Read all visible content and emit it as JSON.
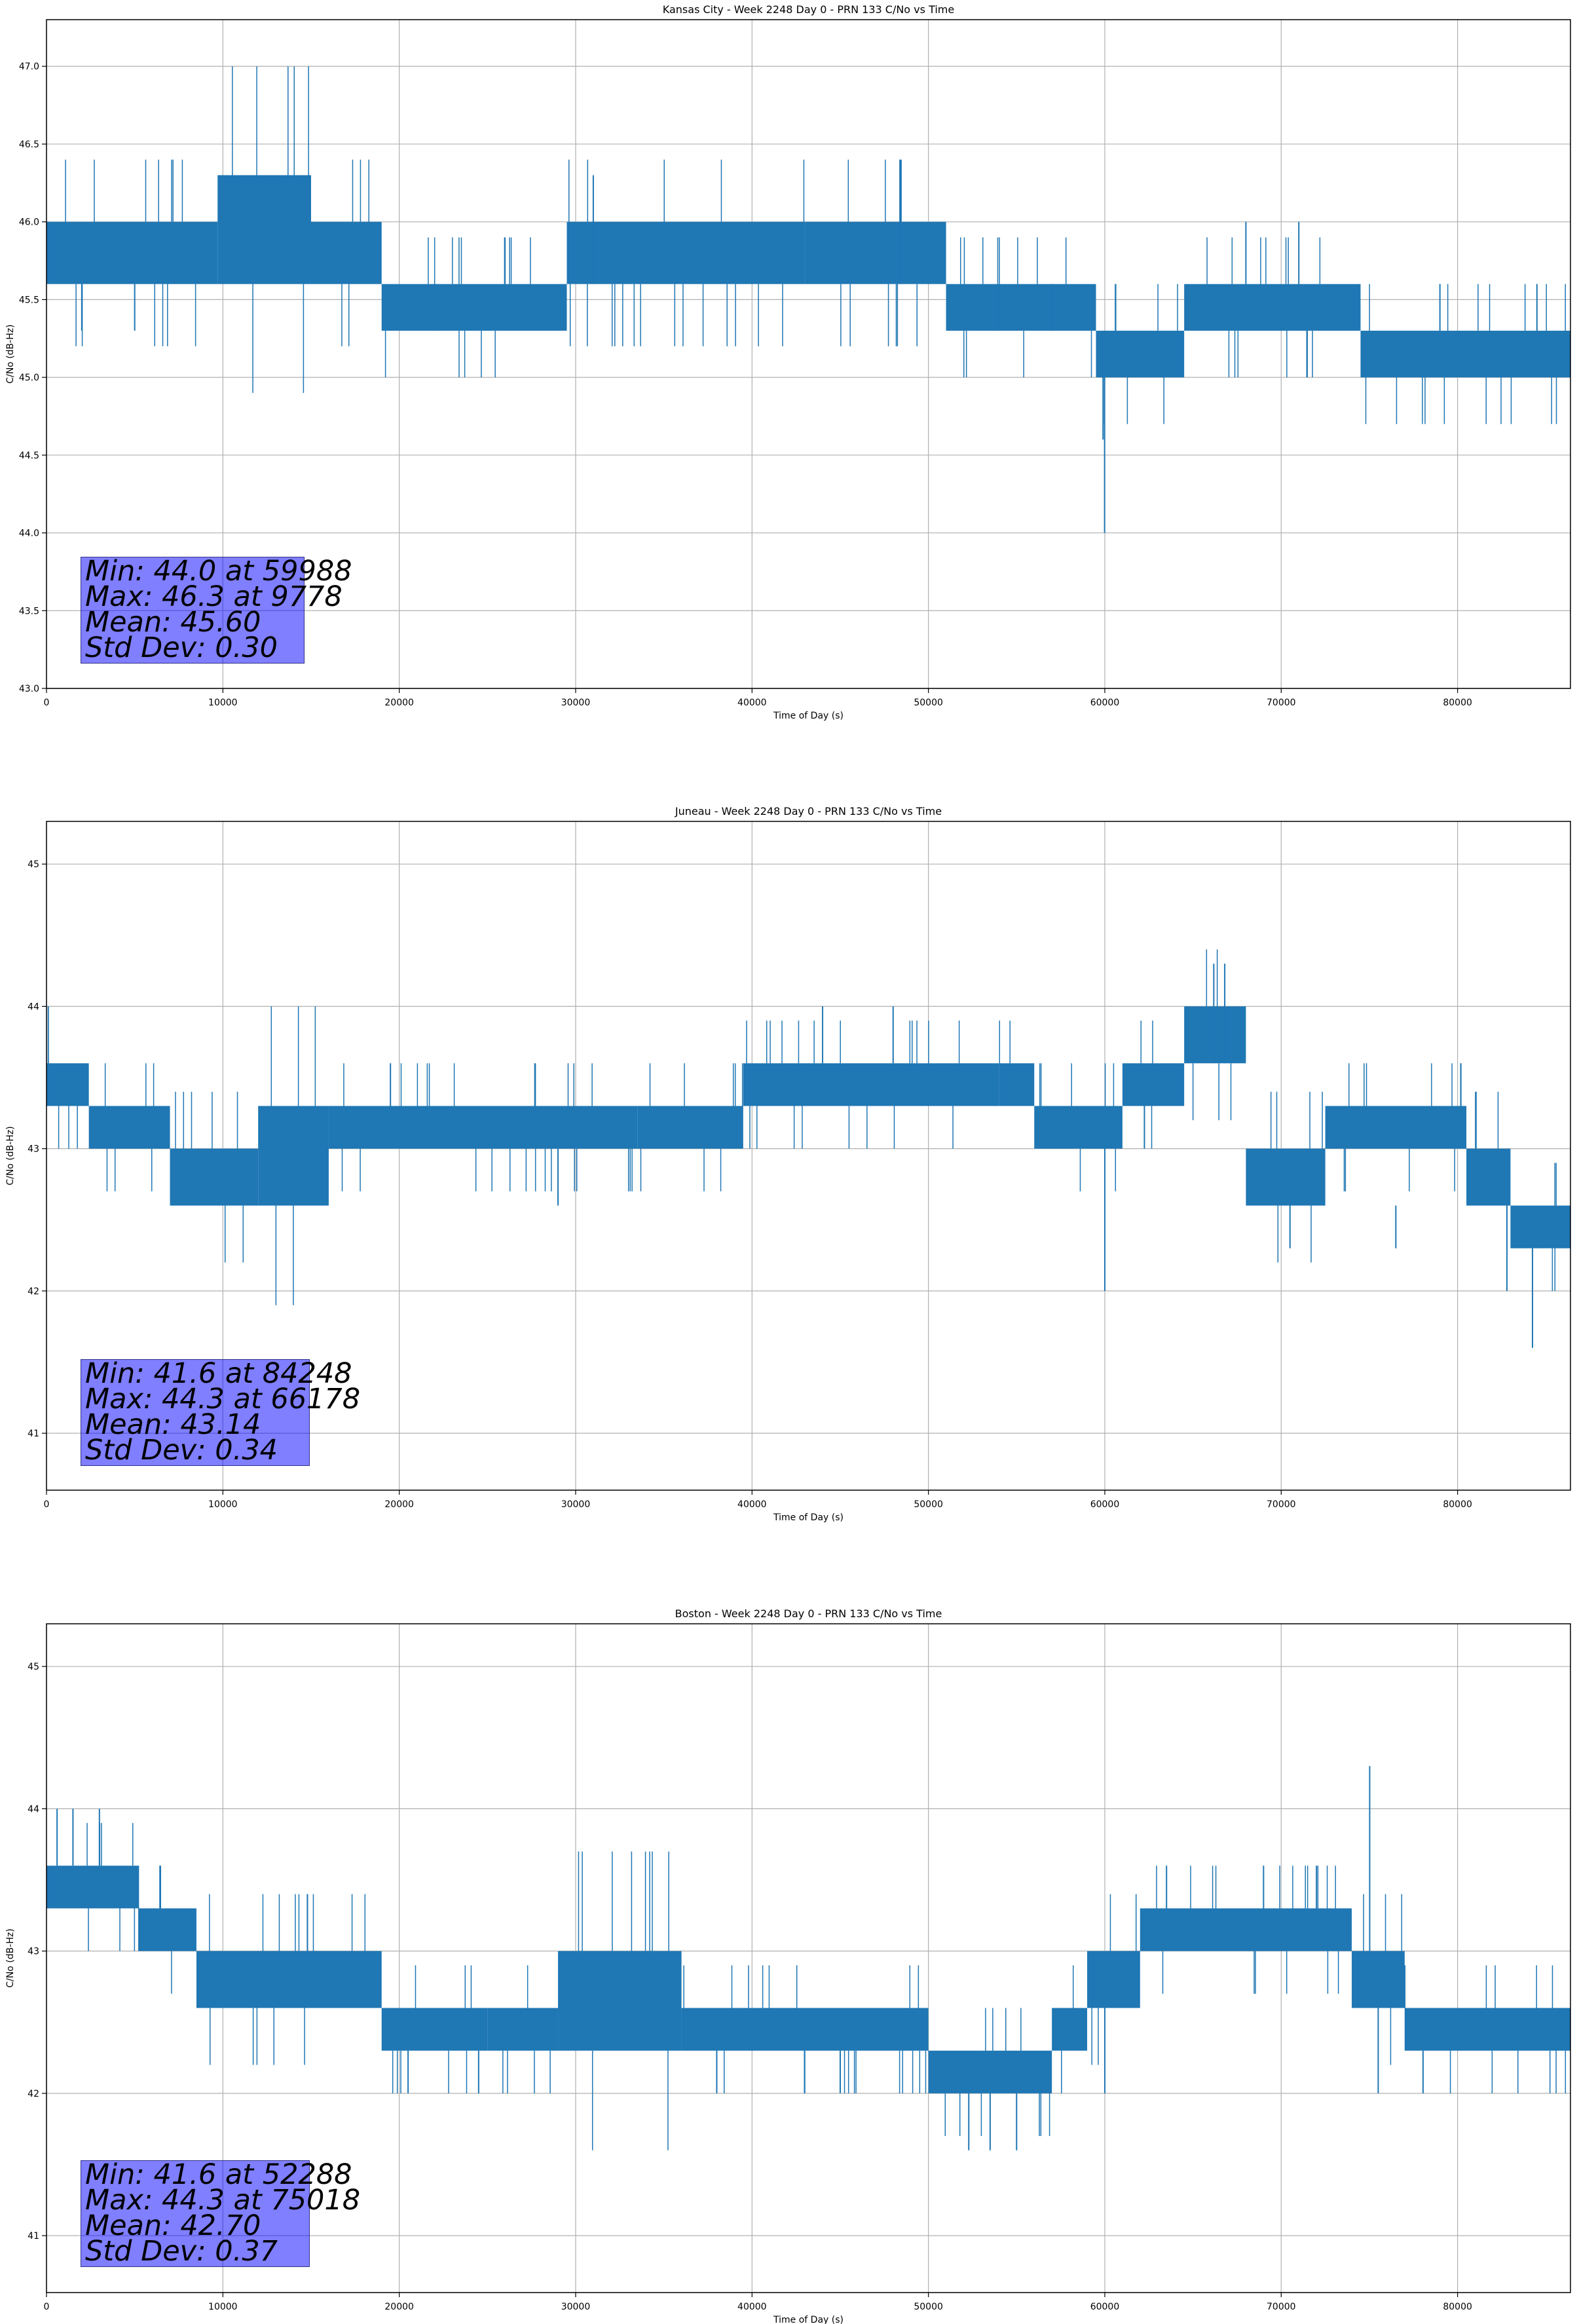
{
  "figure": {
    "background": "#ffffff",
    "line_color": "#1f77b4",
    "grid_color": "#b0b0b0",
    "stats_box_color": "#8080ff"
  },
  "chart_data": [
    {
      "type": "line",
      "title": "Kansas City - Week 2248 Day 0 - PRN 133 C/No vs Time",
      "xlabel": "Time of Day (s)",
      "ylabel": "C/No (dB-Hz)",
      "xlim": [
        0,
        86400
      ],
      "ylim": [
        43.0,
        47.3
      ],
      "xticks": [
        0,
        10000,
        20000,
        30000,
        40000,
        50000,
        60000,
        70000,
        80000
      ],
      "yticks": [
        43.0,
        43.5,
        44.0,
        44.5,
        45.0,
        45.5,
        46.0,
        46.5,
        47.0
      ],
      "ytick_decimals": 1,
      "grid": true,
      "stats": [
        "Min: 44.0 at 59988",
        "Max: 46.3 at 9778",
        "Mean: 45.60",
        "Std Dev: 0.30"
      ],
      "band_profile": [
        {
          "x": 0,
          "low": 45.6,
          "high": 46.0
        },
        {
          "x": 9700,
          "low": 45.6,
          "high": 46.3
        },
        {
          "x": 15000,
          "low": 45.6,
          "high": 46.0
        },
        {
          "x": 19000,
          "low": 45.3,
          "high": 45.6
        },
        {
          "x": 29500,
          "low": 45.6,
          "high": 46.0
        },
        {
          "x": 43000,
          "low": 45.6,
          "high": 46.0
        },
        {
          "x": 51000,
          "low": 45.3,
          "high": 45.6
        },
        {
          "x": 59500,
          "low": 45.0,
          "high": 45.3
        },
        {
          "x": 64500,
          "low": 45.3,
          "high": 45.6
        },
        {
          "x": 74500,
          "low": 45.0,
          "high": 45.3
        },
        {
          "x": 86400,
          "low": 45.0,
          "high": 45.3
        }
      ],
      "spikes": [
        {
          "x": 59988,
          "low": 44.0,
          "high": 45.3
        },
        {
          "x": 59900,
          "low": 44.6,
          "high": 45.3
        },
        {
          "x": 9778,
          "low": 45.6,
          "high": 46.3
        },
        {
          "x": 31000,
          "low": 45.6,
          "high": 46.3
        },
        {
          "x": 48400,
          "low": 45.6,
          "high": 46.3
        },
        {
          "x": 2000,
          "low": 45.3,
          "high": 45.6
        },
        {
          "x": 5000,
          "low": 45.3,
          "high": 45.6
        },
        {
          "x": 22000,
          "low": 45.3,
          "high": 45.6
        },
        {
          "x": 54000,
          "low": 45.3,
          "high": 45.6
        },
        {
          "x": 57000,
          "low": 45.3,
          "high": 45.6
        },
        {
          "x": 68000,
          "low": 45.6,
          "high": 46.0
        },
        {
          "x": 71000,
          "low": 45.6,
          "high": 46.0
        },
        {
          "x": 79000,
          "low": 45.3,
          "high": 45.6
        },
        {
          "x": 84500,
          "low": 45.3,
          "high": 45.6
        }
      ]
    },
    {
      "type": "line",
      "title": "Juneau - Week 2248 Day 0 - PRN 133 C/No vs Time",
      "xlabel": "Time of Day (s)",
      "ylabel": "C/No (dB-Hz)",
      "xlim": [
        0,
        86400
      ],
      "ylim": [
        40.6,
        45.3
      ],
      "xticks": [
        0,
        10000,
        20000,
        30000,
        40000,
        50000,
        60000,
        70000,
        80000
      ],
      "yticks": [
        41,
        42,
        43,
        44,
        45
      ],
      "ytick_decimals": 0,
      "grid": true,
      "stats": [
        "Min: 41.6 at 84248",
        "Max: 44.3 at 66178",
        "Mean: 43.14",
        "Std Dev: 0.34"
      ],
      "band_profile": [
        {
          "x": 0,
          "low": 43.3,
          "high": 43.6
        },
        {
          "x": 2400,
          "low": 43.0,
          "high": 43.3
        },
        {
          "x": 7000,
          "low": 42.6,
          "high": 43.0
        },
        {
          "x": 12000,
          "low": 42.6,
          "high": 43.3
        },
        {
          "x": 16000,
          "low": 43.0,
          "high": 43.3
        },
        {
          "x": 33500,
          "low": 43.0,
          "high": 43.3
        },
        {
          "x": 39500,
          "low": 43.3,
          "high": 43.6
        },
        {
          "x": 54000,
          "low": 43.3,
          "high": 43.6
        },
        {
          "x": 56000,
          "low": 43.0,
          "high": 43.3
        },
        {
          "x": 61000,
          "low": 43.3,
          "high": 43.6
        },
        {
          "x": 64500,
          "low": 43.6,
          "high": 44.0
        },
        {
          "x": 68000,
          "low": 42.6,
          "high": 43.0
        },
        {
          "x": 72500,
          "low": 43.0,
          "high": 43.3
        },
        {
          "x": 80500,
          "low": 42.6,
          "high": 43.0
        },
        {
          "x": 83000,
          "low": 42.3,
          "high": 42.6
        },
        {
          "x": 86400,
          "low": 42.3,
          "high": 43.0
        }
      ],
      "spikes": [
        {
          "x": 84248,
          "low": 41.6,
          "high": 42.3
        },
        {
          "x": 60000,
          "low": 42.0,
          "high": 43.3
        },
        {
          "x": 66178,
          "low": 43.6,
          "high": 44.3
        },
        {
          "x": 66800,
          "low": 43.6,
          "high": 44.3
        },
        {
          "x": 100,
          "low": 43.3,
          "high": 44.0
        },
        {
          "x": 82800,
          "low": 42.0,
          "high": 42.6
        },
        {
          "x": 70500,
          "low": 42.3,
          "high": 42.6
        },
        {
          "x": 76500,
          "low": 42.3,
          "high": 42.6
        },
        {
          "x": 48000,
          "low": 43.6,
          "high": 44.0
        },
        {
          "x": 44000,
          "low": 43.6,
          "high": 44.0
        },
        {
          "x": 19500,
          "low": 43.3,
          "high": 43.6
        },
        {
          "x": 29000,
          "low": 42.6,
          "high": 43.0
        }
      ]
    },
    {
      "type": "line",
      "title": "Boston - Week 2248 Day 0 - PRN 133 C/No vs Time",
      "xlabel": "Time of Day (s)",
      "ylabel": "C/No (dB-Hz)",
      "xlim": [
        0,
        86400
      ],
      "ylim": [
        40.6,
        45.3
      ],
      "xticks": [
        0,
        10000,
        20000,
        30000,
        40000,
        50000,
        60000,
        70000,
        80000
      ],
      "yticks": [
        41,
        42,
        43,
        44,
        45
      ],
      "ytick_decimals": 0,
      "grid": true,
      "stats": [
        "Min: 41.6 at 52288",
        "Max: 44.3 at 75018",
        "Mean: 42.70",
        "Std Dev: 0.37"
      ],
      "band_profile": [
        {
          "x": 0,
          "low": 43.3,
          "high": 43.6
        },
        {
          "x": 5200,
          "low": 43.0,
          "high": 43.3
        },
        {
          "x": 8500,
          "low": 42.6,
          "high": 43.0
        },
        {
          "x": 19000,
          "low": 42.3,
          "high": 42.6
        },
        {
          "x": 25000,
          "low": 42.3,
          "high": 42.6
        },
        {
          "x": 29000,
          "low": 42.3,
          "high": 43.0
        },
        {
          "x": 36000,
          "low": 42.3,
          "high": 42.6
        },
        {
          "x": 50000,
          "low": 42.0,
          "high": 42.3
        },
        {
          "x": 57000,
          "low": 42.3,
          "high": 42.6
        },
        {
          "x": 59000,
          "low": 42.6,
          "high": 43.0
        },
        {
          "x": 62000,
          "low": 43.0,
          "high": 43.3
        },
        {
          "x": 74000,
          "low": 42.6,
          "high": 43.0
        },
        {
          "x": 77000,
          "low": 42.3,
          "high": 42.6
        },
        {
          "x": 86400,
          "low": 42.3,
          "high": 43.0
        }
      ],
      "spikes": [
        {
          "x": 75018,
          "low": 43.0,
          "high": 44.3
        },
        {
          "x": 52288,
          "low": 41.6,
          "high": 42.0
        },
        {
          "x": 53500,
          "low": 41.6,
          "high": 42.0
        },
        {
          "x": 55000,
          "low": 41.6,
          "high": 42.0
        },
        {
          "x": 600,
          "low": 43.6,
          "high": 44.0
        },
        {
          "x": 1500,
          "low": 43.6,
          "high": 44.0
        },
        {
          "x": 3000,
          "low": 43.6,
          "high": 44.0
        },
        {
          "x": 20500,
          "low": 42.0,
          "high": 42.3
        },
        {
          "x": 24500,
          "low": 42.0,
          "high": 42.3
        },
        {
          "x": 38000,
          "low": 42.0,
          "high": 42.3
        },
        {
          "x": 45000,
          "low": 42.0,
          "high": 42.3
        },
        {
          "x": 60000,
          "low": 42.0,
          "high": 42.6
        },
        {
          "x": 63500,
          "low": 43.3,
          "high": 43.6
        },
        {
          "x": 69000,
          "low": 43.3,
          "high": 43.6
        },
        {
          "x": 72000,
          "low": 43.3,
          "high": 43.6
        },
        {
          "x": 75500,
          "low": 42.0,
          "high": 42.6
        }
      ]
    }
  ]
}
